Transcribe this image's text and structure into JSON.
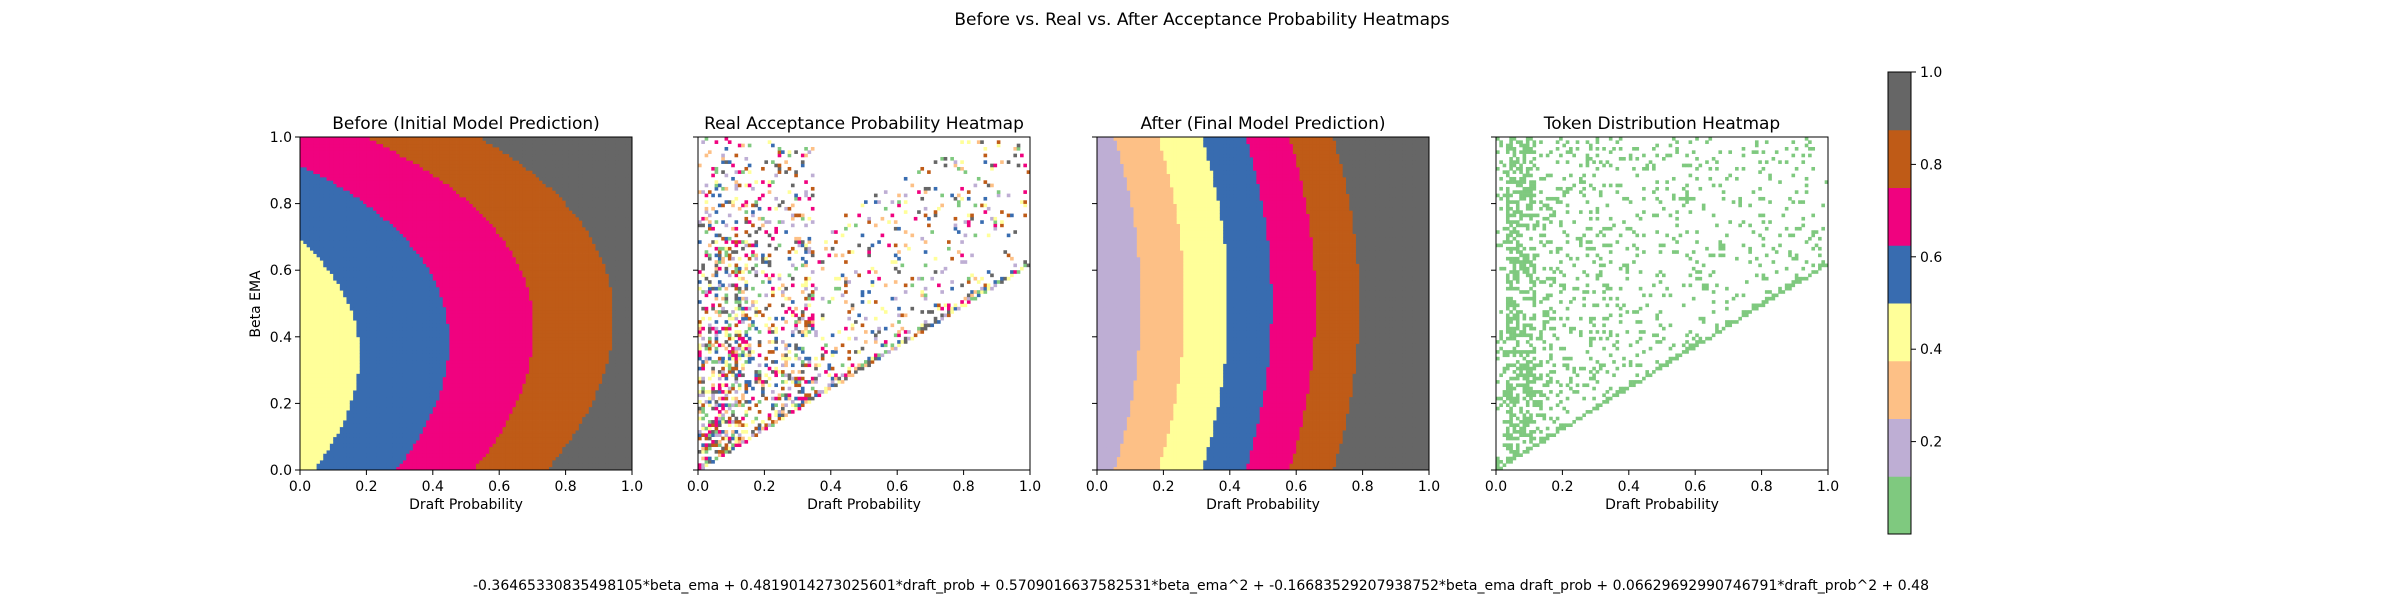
{
  "figure": {
    "suptitle": "Before vs. Real vs. After Acceptance Probability Heatmaps",
    "footer_equation": "-0.36465330835498105*beta_ema + 0.4819014273025601*draft_prob + 0.5709016637582531*beta_ema^2 + -0.16683529207938752*beta_ema draft_prob + 0.06629692990746791*draft_prob^2 + 0.48"
  },
  "colors": {
    "palette": [
      "#7fc97f",
      "#beaed4",
      "#fdc086",
      "#ffff99",
      "#386cb0",
      "#f0027f",
      "#bf5b17",
      "#666666"
    ],
    "token_color": "#7fc97f"
  },
  "chart_data": [
    {
      "type": "heatmap",
      "title": "Before (Initial Model Prediction)",
      "xlabel": "Draft Probability",
      "ylabel": "Beta EMA",
      "xlim": [
        0,
        1
      ],
      "ylim": [
        0,
        1
      ],
      "xticks": [
        "0.0",
        "0.2",
        "0.4",
        "0.6",
        "0.8",
        "1.0"
      ],
      "yticks": [
        "0.0",
        "0.2",
        "0.4",
        "0.6",
        "0.8",
        "1.0"
      ],
      "grid": false,
      "description_values": {
        "function": "0.48 - 0.36465330835498105*beta_ema + 0.4819014273025601*draft_prob + 0.5709016637582531*beta_ema^2 - 0.16683529207938752*beta_ema*draft_prob + 0.06629692990746791*draft_prob^2",
        "resolution": 100
      }
    },
    {
      "type": "heatmap",
      "title": "Real Acceptance Probability Heatmap",
      "xlabel": "Draft Probability",
      "ylabel": "",
      "xlim": [
        0,
        1
      ],
      "ylim": [
        0,
        1
      ],
      "xticks": [
        "0.0",
        "0.2",
        "0.4",
        "0.6",
        "0.8",
        "1.0"
      ],
      "yticks": [
        "",
        "",
        "",
        "",
        "",
        ""
      ],
      "grid": false,
      "description_values": {
        "sparse": true,
        "domain": "beta_ema <= draft_prob (lower-right triangle) plus scattered cells near draft_prob 0.0-0.3",
        "resolution": 100
      }
    },
    {
      "type": "heatmap",
      "title": "After (Final Model Prediction)",
      "xlabel": "Draft Probability",
      "ylabel": "",
      "xlim": [
        0,
        1
      ],
      "ylim": [
        0,
        1
      ],
      "xticks": [
        "0.0",
        "0.2",
        "0.4",
        "0.6",
        "0.8",
        "1.0"
      ],
      "yticks": [
        "",
        "",
        "",
        "",
        "",
        ""
      ],
      "grid": false,
      "description_values": {
        "function": "approx 0.125 + 0.95*draft_prob + 0.3*(beta_ema - 0.5)^2",
        "resolution": 100
      }
    },
    {
      "type": "heatmap",
      "title": "Token Distribution Heatmap",
      "xlabel": "Draft Probability",
      "ylabel": "",
      "xlim": [
        0,
        1
      ],
      "ylim": [
        0,
        1
      ],
      "xticks": [
        "0.0",
        "0.2",
        "0.4",
        "0.6",
        "0.8",
        "1.0"
      ],
      "yticks": [
        "",
        "",
        "",
        "",
        "",
        ""
      ],
      "grid": false,
      "description_values": {
        "sparse": true,
        "cell_color": "#7fc97f",
        "resolution": 100
      }
    }
  ],
  "colorbar": {
    "ticks": [
      "0.2",
      "0.4",
      "0.6",
      "0.8",
      "1.0"
    ],
    "tick_values": [
      0.2,
      0.4,
      0.6,
      0.8,
      1.0
    ],
    "range": [
      0,
      1.0
    ]
  }
}
